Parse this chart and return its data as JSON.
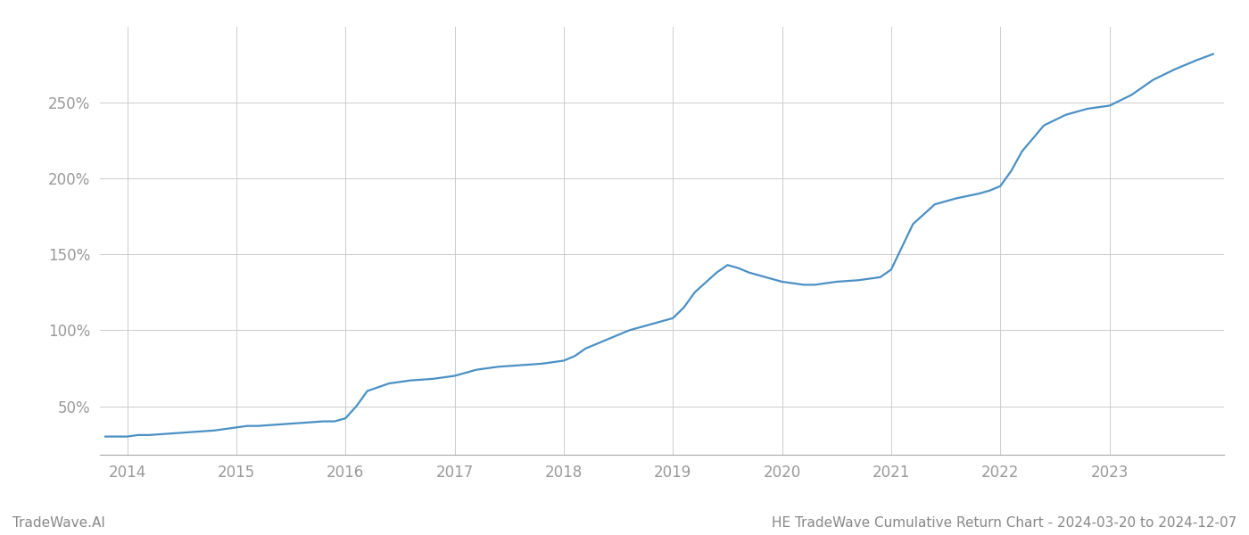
{
  "title": "HE TradeWave Cumulative Return Chart - 2024-03-20 to 2024-12-07",
  "watermark": "TradeWave.AI",
  "line_color": "#4a90c4",
  "background_color": "#ffffff",
  "grid_color": "#cccccc",
  "text_color": "#888888",
  "x_years": [
    2014,
    2015,
    2016,
    2017,
    2018,
    2019,
    2020,
    2021,
    2022,
    2023
  ],
  "x_data": [
    2013.8,
    2014.0,
    2014.1,
    2014.2,
    2014.4,
    2014.6,
    2014.8,
    2014.9,
    2015.0,
    2015.1,
    2015.2,
    2015.4,
    2015.6,
    2015.8,
    2015.9,
    2016.0,
    2016.1,
    2016.2,
    2016.4,
    2016.6,
    2016.8,
    2016.9,
    2017.0,
    2017.1,
    2017.2,
    2017.4,
    2017.6,
    2017.8,
    2017.9,
    2018.0,
    2018.1,
    2018.2,
    2018.4,
    2018.6,
    2018.8,
    2018.9,
    2019.0,
    2019.1,
    2019.2,
    2019.4,
    2019.5,
    2019.6,
    2019.7,
    2019.8,
    2019.9,
    2020.0,
    2020.1,
    2020.2,
    2020.3,
    2020.4,
    2020.5,
    2020.7,
    2020.9,
    2021.0,
    2021.1,
    2021.2,
    2021.4,
    2021.6,
    2021.8,
    2021.9,
    2022.0,
    2022.1,
    2022.2,
    2022.4,
    2022.6,
    2022.8,
    2022.9,
    2023.0,
    2023.2,
    2023.4,
    2023.6,
    2023.8,
    2023.95
  ],
  "y_data": [
    30,
    30,
    31,
    31,
    32,
    33,
    34,
    35,
    36,
    37,
    37,
    38,
    39,
    40,
    40,
    42,
    50,
    60,
    65,
    67,
    68,
    69,
    70,
    72,
    74,
    76,
    77,
    78,
    79,
    80,
    83,
    88,
    94,
    100,
    104,
    106,
    108,
    115,
    125,
    138,
    143,
    141,
    138,
    136,
    134,
    132,
    131,
    130,
    130,
    131,
    132,
    133,
    135,
    140,
    155,
    170,
    183,
    187,
    190,
    192,
    195,
    205,
    218,
    235,
    242,
    246,
    247,
    248,
    255,
    265,
    272,
    278,
    282
  ],
  "yticks": [
    50,
    100,
    150,
    200,
    250
  ],
  "ytick_labels": [
    "50%",
    "100%",
    "150%",
    "200%",
    "250%"
  ],
  "ylim": [
    18,
    300
  ],
  "xlim": [
    2013.75,
    2024.05
  ],
  "line_width": 1.6,
  "title_fontsize": 11,
  "watermark_fontsize": 11,
  "tick_fontsize": 12,
  "tick_color": "#999999",
  "footer_color": "#888888"
}
